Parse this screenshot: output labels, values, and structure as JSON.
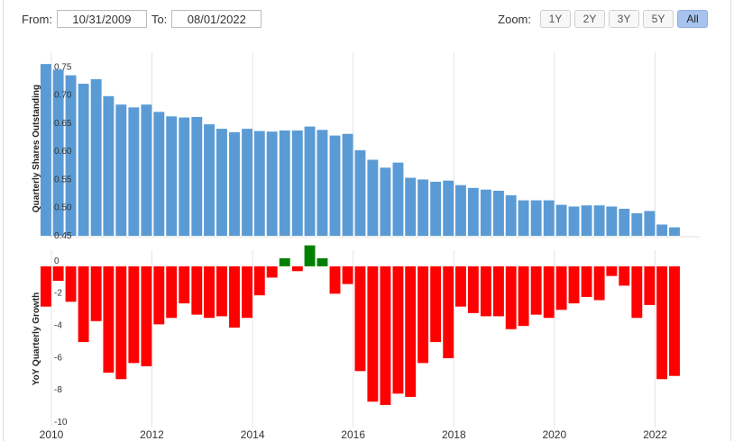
{
  "controls": {
    "from_label": "From:",
    "from_value": "10/31/2009",
    "to_label": "To:",
    "to_value": "08/01/2022",
    "zoom_label": "Zoom:",
    "zoom_buttons": [
      "1Y",
      "2Y",
      "3Y",
      "5Y",
      "All"
    ],
    "zoom_active": "All"
  },
  "colors": {
    "shares_bar": "#5b9bd5",
    "growth_negative": "#ff0000",
    "growth_positive": "#008000"
  },
  "chart_data": [
    {
      "type": "bar",
      "ylabel": "Quarterly Shares Outstanding",
      "ylim": [
        0.45,
        0.76
      ],
      "yticks": [
        "0.45",
        "0.50",
        "0.55",
        "0.60",
        "0.65",
        "0.70",
        "0.75"
      ],
      "x": [
        "2009-12-31",
        "2010-03-31",
        "2010-06-30",
        "2010-09-30",
        "2010-12-31",
        "2011-03-31",
        "2011-06-30",
        "2011-09-30",
        "2011-12-31",
        "2012-03-31",
        "2012-06-30",
        "2012-09-30",
        "2012-12-31",
        "2013-03-31",
        "2013-06-30",
        "2013-09-30",
        "2013-12-31",
        "2014-03-31",
        "2014-06-30",
        "2014-09-30",
        "2014-12-31",
        "2015-03-31",
        "2015-06-30",
        "2015-09-30",
        "2015-12-31",
        "2016-03-31",
        "2016-06-30",
        "2016-09-30",
        "2016-12-31",
        "2017-03-31",
        "2017-06-30",
        "2017-09-30",
        "2017-12-31",
        "2018-03-31",
        "2018-06-30",
        "2018-09-30",
        "2018-12-31",
        "2019-03-31",
        "2019-06-30",
        "2019-09-30",
        "2019-12-31",
        "2020-03-31",
        "2020-06-30",
        "2020-09-30",
        "2020-12-31",
        "2021-03-31",
        "2021-06-30",
        "2021-09-30",
        "2021-12-31",
        "2022-03-31",
        "2022-06-30"
      ],
      "values": [
        0.755,
        0.745,
        0.735,
        0.72,
        0.728,
        0.698,
        0.683,
        0.678,
        0.683,
        0.67,
        0.662,
        0.66,
        0.661,
        0.648,
        0.64,
        0.634,
        0.64,
        0.636,
        0.635,
        0.637,
        0.637,
        0.644,
        0.638,
        0.628,
        0.631,
        0.602,
        0.585,
        0.571,
        0.58,
        0.553,
        0.55,
        0.546,
        0.548,
        0.54,
        0.535,
        0.532,
        0.53,
        0.522,
        0.513,
        0.513,
        0.513,
        0.505,
        0.502,
        0.504,
        0.504,
        0.502,
        0.498,
        0.49,
        0.494,
        0.47,
        0.465
      ]
    },
    {
      "type": "bar",
      "ylabel": "YoY Quarterly Growth",
      "ylim": [
        -10,
        1
      ],
      "yticks": [
        "0",
        "-2",
        "-4",
        "-6",
        "-8",
        "-10"
      ],
      "x": [
        "2009-12-31",
        "2010-03-31",
        "2010-06-30",
        "2010-09-30",
        "2010-12-31",
        "2011-03-31",
        "2011-06-30",
        "2011-09-30",
        "2011-12-31",
        "2012-03-31",
        "2012-06-30",
        "2012-09-30",
        "2012-12-31",
        "2013-03-31",
        "2013-06-30",
        "2013-09-30",
        "2013-12-31",
        "2014-03-31",
        "2014-06-30",
        "2014-09-30",
        "2014-12-31",
        "2015-03-31",
        "2015-06-30",
        "2015-09-30",
        "2015-12-31",
        "2016-03-31",
        "2016-06-30",
        "2016-09-30",
        "2016-12-31",
        "2017-03-31",
        "2017-06-30",
        "2017-09-30",
        "2017-12-31",
        "2018-03-31",
        "2018-06-30",
        "2018-09-30",
        "2018-12-31",
        "2019-03-31",
        "2019-06-30",
        "2019-09-30",
        "2019-12-31",
        "2020-03-31",
        "2020-06-30",
        "2020-09-30",
        "2020-12-31",
        "2021-03-31",
        "2021-06-30",
        "2021-09-30",
        "2021-12-31",
        "2022-03-31",
        "2022-06-30"
      ],
      "values": [
        -2.5,
        -0.9,
        -2.2,
        -4.7,
        -3.4,
        -6.6,
        -7.0,
        -6.0,
        -6.2,
        -3.6,
        -3.2,
        -2.3,
        -3.0,
        -3.2,
        -3.1,
        -3.8,
        -3.2,
        -1.8,
        -0.7,
        0.5,
        -0.3,
        1.3,
        0.5,
        -1.7,
        -1.1,
        -6.5,
        -8.4,
        -8.6,
        -7.9,
        -8.1,
        -6.0,
        -4.7,
        -5.7,
        -2.5,
        -2.9,
        -3.1,
        -3.1,
        -3.9,
        -3.7,
        -3.0,
        -3.2,
        -2.7,
        -2.3,
        -1.9,
        -2.1,
        -0.6,
        -1.2,
        -3.2,
        -2.4,
        -7.0,
        -6.8
      ]
    }
  ],
  "x_axis": {
    "xlim": [
      "2010-01-01",
      "2022-09-30"
    ],
    "ticks": [
      {
        "date": "2010-01-01",
        "label": "2010"
      },
      {
        "date": "2012-01-01",
        "label": "2012"
      },
      {
        "date": "2014-01-01",
        "label": "2014"
      },
      {
        "date": "2016-01-01",
        "label": "2016"
      },
      {
        "date": "2018-01-01",
        "label": "2018"
      },
      {
        "date": "2020-01-01",
        "label": "2020"
      },
      {
        "date": "2022-01-01",
        "label": "2022"
      }
    ]
  }
}
